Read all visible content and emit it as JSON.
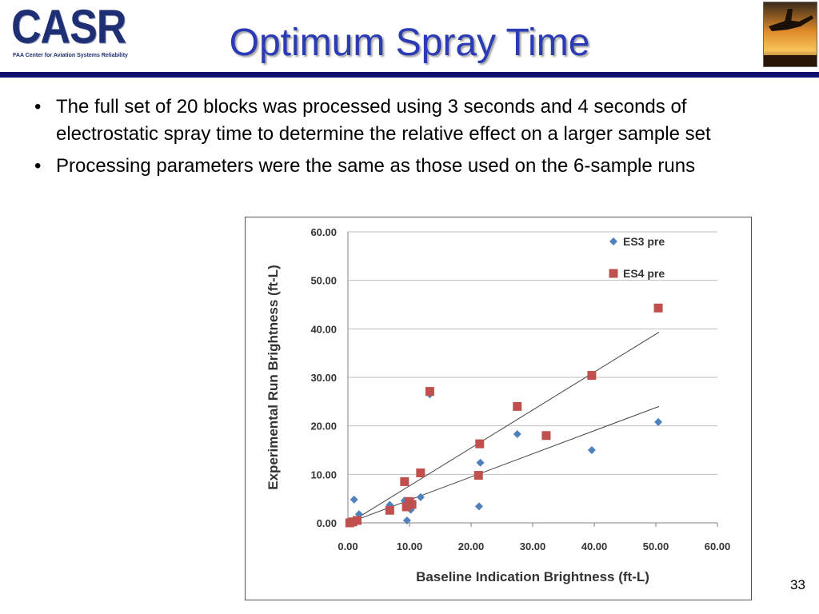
{
  "logo": {
    "text": "CASR",
    "subtitle": "FAA Center for Aviation Systems Reliability"
  },
  "title": "Optimum Spray Time",
  "bullets": [
    "The full set of 20 blocks was processed using 3 seconds and 4 seconds of electrostatic spray time to determine the relative effect on a larger sample set",
    "Processing parameters were the same as those used on the 6-sample runs"
  ],
  "page_number": "33",
  "colors": {
    "title": "#2a3bb5",
    "rule": "#10106e",
    "es3": "#4f81bd",
    "es4": "#c0504d"
  },
  "chart_data": {
    "type": "scatter",
    "xlabel": "Baseline Indication Brightness (ft-L)",
    "ylabel": "Experimental  Run Brightness (ft-L)",
    "xlim": [
      0,
      60
    ],
    "ylim": [
      0,
      60
    ],
    "xticks": [
      "0.00",
      "10.00",
      "20.00",
      "30.00",
      "40.00",
      "50.00",
      "60.00"
    ],
    "yticks": [
      "0.00",
      "10.00",
      "20.00",
      "30.00",
      "40.00",
      "50.00",
      "60.00"
    ],
    "grid": "horizontal",
    "legend": "top-right",
    "series": [
      {
        "name": "ES3 pre",
        "marker": "diamond",
        "color": "#4f81bd",
        "points": [
          [
            0.5,
            0.2
          ],
          [
            1.0,
            4.8
          ],
          [
            1.8,
            1.8
          ],
          [
            6.8,
            3.7
          ],
          [
            9.2,
            4.6
          ],
          [
            9.6,
            0.5
          ],
          [
            10.2,
            2.7
          ],
          [
            10.5,
            4.0
          ],
          [
            11.8,
            5.3
          ],
          [
            13.3,
            26.5
          ],
          [
            21.3,
            3.4
          ],
          [
            21.5,
            12.4
          ],
          [
            27.5,
            18.3
          ],
          [
            32.2,
            18.0
          ],
          [
            39.6,
            15.0
          ],
          [
            50.4,
            20.8
          ]
        ],
        "trend": [
          [
            0.5,
            0.2
          ],
          [
            50.5,
            24.0
          ]
        ]
      },
      {
        "name": "ES4 pre",
        "marker": "square",
        "color": "#c0504d",
        "points": [
          [
            0.3,
            0.0
          ],
          [
            0.8,
            0.2
          ],
          [
            1.5,
            0.5
          ],
          [
            6.8,
            2.6
          ],
          [
            9.2,
            8.5
          ],
          [
            9.5,
            3.3
          ],
          [
            10.0,
            4.4
          ],
          [
            10.4,
            3.8
          ],
          [
            11.8,
            10.3
          ],
          [
            13.3,
            27.1
          ],
          [
            21.2,
            9.8
          ],
          [
            21.4,
            16.3
          ],
          [
            27.5,
            24.0
          ],
          [
            32.2,
            18.0
          ],
          [
            39.6,
            30.4
          ],
          [
            50.4,
            44.3
          ]
        ],
        "trend": [
          [
            0.5,
            0.2
          ],
          [
            50.5,
            39.3
          ]
        ]
      }
    ]
  }
}
